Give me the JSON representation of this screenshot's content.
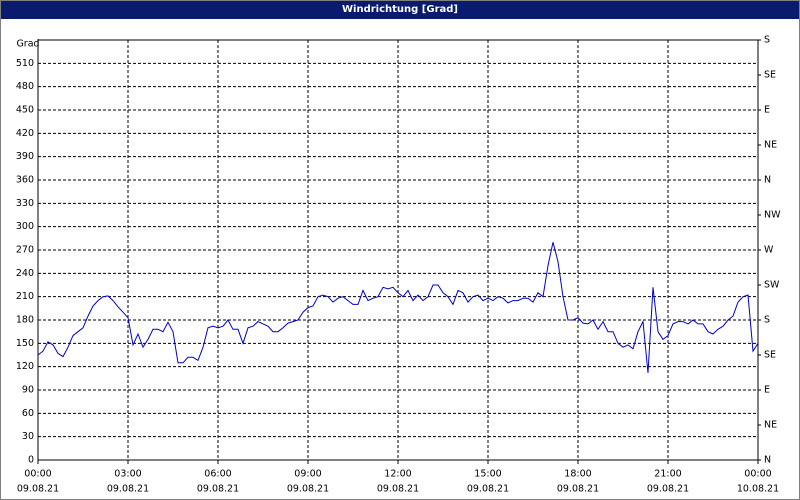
{
  "window_title": "Windrichtung [Grad]",
  "chart_data": {
    "type": "line",
    "ylabel": "Grad",
    "xlim": [
      0,
      1440
    ],
    "xticks": [
      {
        "value": 0,
        "label": "00:00",
        "date": "09.08.21"
      },
      {
        "value": 180,
        "label": "03:00",
        "date": "09.08.21"
      },
      {
        "value": 360,
        "label": "06:00",
        "date": "09.08.21"
      },
      {
        "value": 540,
        "label": "09:00",
        "date": "09.08.21"
      },
      {
        "value": 720,
        "label": "12:00",
        "date": "09.08.21"
      },
      {
        "value": 900,
        "label": "15:00",
        "date": "09.08.21"
      },
      {
        "value": 1080,
        "label": "18:00",
        "date": "09.08.21"
      },
      {
        "value": 1260,
        "label": "21:00",
        "date": "09.08.21"
      },
      {
        "value": 1440,
        "label": "00:00",
        "date": "10.08.21"
      }
    ],
    "ylim": [
      0,
      540
    ],
    "yticks": [
      0,
      30,
      60,
      90,
      120,
      150,
      180,
      210,
      240,
      270,
      300,
      330,
      360,
      390,
      420,
      450,
      480,
      510
    ],
    "y2lim": [
      0,
      540
    ],
    "y2ticks": [
      {
        "value": 0,
        "label": "N"
      },
      {
        "value": 45,
        "label": "NE"
      },
      {
        "value": 90,
        "label": "E"
      },
      {
        "value": 135,
        "label": "SE"
      },
      {
        "value": 180,
        "label": "S"
      },
      {
        "value": 225,
        "label": "SW"
      },
      {
        "value": 270,
        "label": "W"
      },
      {
        "value": 315,
        "label": "NW"
      },
      {
        "value": 360,
        "label": "N"
      },
      {
        "value": 405,
        "label": "NE"
      },
      {
        "value": 450,
        "label": "E"
      },
      {
        "value": 495,
        "label": "SE"
      },
      {
        "value": 540,
        "label": "S"
      }
    ],
    "grid": true,
    "series": [
      {
        "color": "#0000cc",
        "x": [
          0,
          10,
          20,
          30,
          40,
          50,
          60,
          70,
          80,
          90,
          100,
          110,
          120,
          130,
          140,
          150,
          160,
          170,
          180,
          190,
          200,
          210,
          220,
          230,
          240,
          250,
          260,
          270,
          280,
          290,
          300,
          310,
          320,
          330,
          340,
          350,
          360,
          370,
          380,
          390,
          400,
          410,
          420,
          430,
          440,
          450,
          460,
          470,
          480,
          490,
          500,
          510,
          520,
          530,
          540,
          550,
          560,
          570,
          580,
          590,
          600,
          610,
          620,
          630,
          640,
          650,
          660,
          670,
          680,
          690,
          700,
          710,
          720,
          730,
          740,
          750,
          760,
          770,
          780,
          790,
          800,
          810,
          820,
          830,
          840,
          850,
          860,
          870,
          880,
          890,
          900,
          910,
          920,
          930,
          940,
          950,
          960,
          970,
          980,
          990,
          1000,
          1010,
          1020,
          1030,
          1040,
          1050,
          1060,
          1070,
          1080,
          1090,
          1100,
          1110,
          1120,
          1130,
          1140,
          1150,
          1160,
          1170,
          1180,
          1190,
          1200,
          1210,
          1220,
          1230,
          1240,
          1250,
          1260,
          1270,
          1280,
          1290,
          1300,
          1310,
          1320,
          1330,
          1340,
          1350,
          1360,
          1370,
          1380,
          1390,
          1400,
          1410,
          1420,
          1430,
          1440
        ],
        "values": [
          135,
          140,
          152,
          148,
          137,
          133,
          145,
          160,
          165,
          170,
          185,
          198,
          205,
          210,
          211,
          205,
          197,
          190,
          183,
          148,
          162,
          145,
          155,
          168,
          168,
          165,
          177,
          165,
          125,
          125,
          132,
          132,
          128,
          145,
          170,
          172,
          170,
          172,
          180,
          168,
          168,
          150,
          170,
          172,
          178,
          175,
          172,
          165,
          165,
          170,
          176,
          178,
          180,
          190,
          196,
          198,
          210,
          212,
          210,
          203,
          208,
          210,
          205,
          200,
          200,
          218,
          205,
          208,
          210,
          222,
          220,
          222,
          215,
          210,
          218,
          205,
          212,
          205,
          210,
          225,
          225,
          215,
          210,
          200,
          218,
          215,
          203,
          210,
          212,
          205,
          208,
          205,
          210,
          208,
          202,
          205,
          205,
          208,
          208,
          203,
          215,
          210,
          250,
          280,
          255,
          210,
          180,
          180,
          183,
          176,
          175,
          180,
          168,
          178,
          165,
          165,
          150,
          145,
          148,
          143,
          165,
          178,
          112,
          222,
          165,
          155,
          160,
          175,
          178,
          178,
          175,
          180,
          175,
          175,
          165,
          162,
          168,
          172,
          180,
          185,
          203,
          210,
          212,
          140,
          150
        ]
      }
    ]
  }
}
